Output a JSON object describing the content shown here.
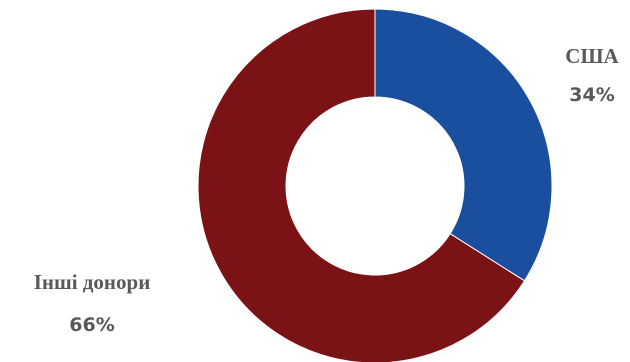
{
  "chart_data": {
    "type": "pie",
    "donut": true,
    "slices": [
      {
        "label": "США",
        "value": 34,
        "value_label": "34%",
        "color": "#1a4fa0"
      },
      {
        "label": "Інші донори",
        "value": 66,
        "value_label": "66%",
        "color": "#7b1215"
      }
    ],
    "legend": "none",
    "data_labels": "outside"
  }
}
